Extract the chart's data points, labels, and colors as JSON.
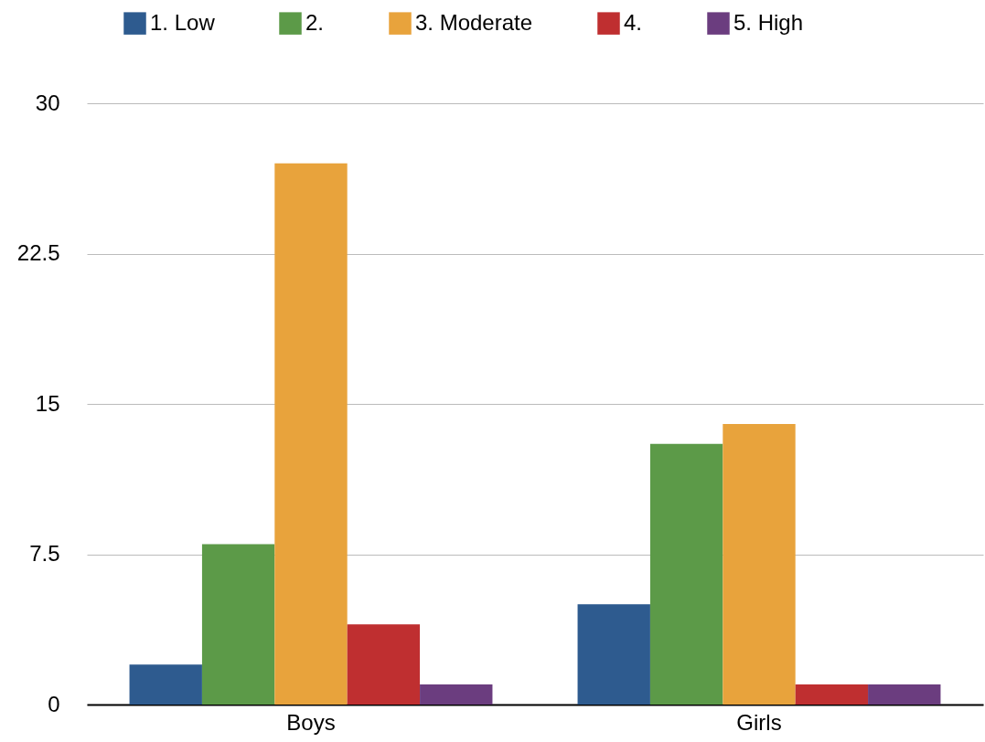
{
  "chart_data": {
    "type": "bar",
    "categories": [
      "Boys",
      "Girls"
    ],
    "series": [
      {
        "name": "1. Low",
        "color": "#2e5b8f",
        "values": [
          2,
          5
        ]
      },
      {
        "name": "2.",
        "color": "#5c9a48",
        "values": [
          8,
          13
        ]
      },
      {
        "name": "3. Moderate",
        "color": "#e8a33c",
        "values": [
          27,
          14
        ]
      },
      {
        "name": "4.",
        "color": "#bf2f30",
        "values": [
          4,
          1
        ]
      },
      {
        "name": "5. High",
        "color": "#6b3d7f",
        "values": [
          1,
          1
        ]
      }
    ],
    "ylim": [
      0,
      30
    ],
    "yticks": [
      0,
      7.5,
      15,
      22.5,
      30
    ],
    "grid": "y",
    "legend": "top"
  }
}
